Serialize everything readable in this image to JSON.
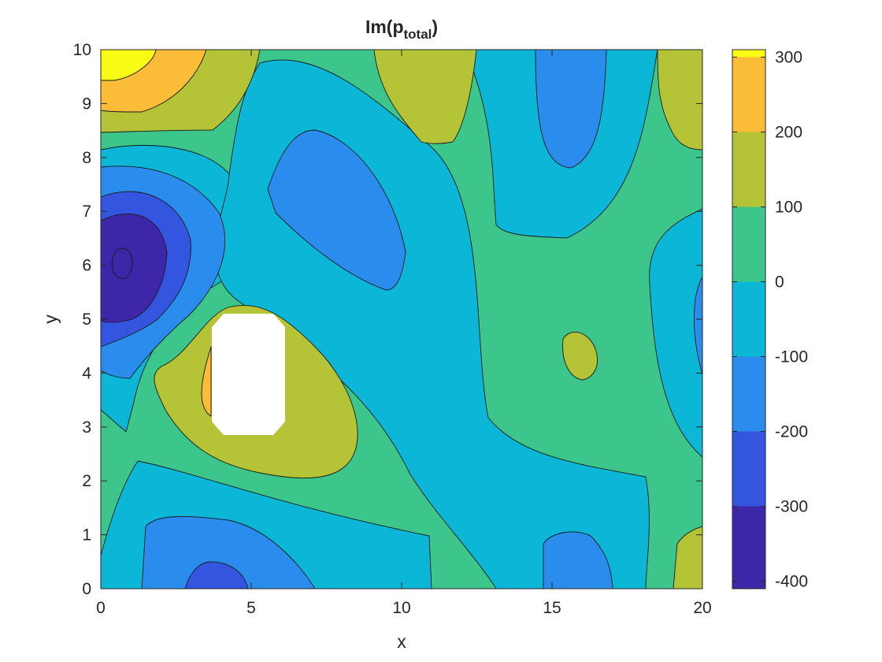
{
  "chart_data": {
    "type": "heatmap",
    "subtype": "filled-contour",
    "title": "Im(p",
    "title_subscript": "total",
    "title_close": ")",
    "xlabel": "x",
    "ylabel": "y",
    "xlim": [
      0,
      20
    ],
    "ylim": [
      0,
      10
    ],
    "xticks": [
      "0",
      "5",
      "10",
      "15",
      "20"
    ],
    "yticks": [
      "0",
      "1",
      "2",
      "3",
      "4",
      "5",
      "6",
      "7",
      "8",
      "9",
      "10"
    ],
    "colorbar": {
      "limits": [
        -410,
        310
      ],
      "ticks": [
        "300",
        "200",
        "100",
        "0",
        "-100",
        "-200",
        "-300",
        "-400"
      ],
      "tick_values": [
        300,
        200,
        100,
        0,
        -100,
        -200,
        -300,
        -400
      ],
      "colormap": "parula",
      "colors": [
        "#3e26a8",
        "#3355e0",
        "#2a8cec",
        "#0bb6d6",
        "#3cc68b",
        "#b4c436",
        "#fbbd38",
        "#f9fb15"
      ]
    },
    "contour_levels": [
      -400,
      -300,
      -200,
      -100,
      0,
      100,
      200,
      300
    ],
    "grid": false,
    "obstacle": {
      "x_range": [
        3.7,
        6.1
      ],
      "y_range": [
        2.85,
        5.15
      ],
      "fill": "#ffffff"
    },
    "annotations": []
  }
}
